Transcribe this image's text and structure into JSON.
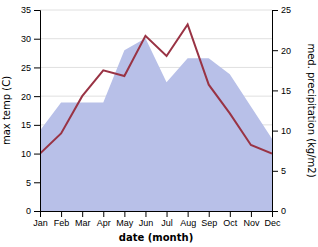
{
  "chart_data": {
    "type": "line",
    "categories": [
      "Jan",
      "Feb",
      "Mar",
      "Apr",
      "May",
      "Jun",
      "Jul",
      "Aug",
      "Sep",
      "Oct",
      "Nov",
      "Dec"
    ],
    "xlabel": "date (month)",
    "ylabel": "max temp (C)",
    "y2label": "med. precipitation (kg/m2)",
    "ylim": [
      0,
      35
    ],
    "yticks": [
      0,
      5,
      10,
      15,
      20,
      25,
      30,
      35
    ],
    "y2lim": [
      0,
      25
    ],
    "y2ticks": [
      0,
      5,
      10,
      15,
      20,
      25
    ],
    "grid": true,
    "series": [
      {
        "type": "area",
        "axis": "y2",
        "color": "#b8c0e8",
        "values": [
          10.0,
          13.5,
          13.5,
          13.5,
          20.0,
          21.5,
          16.0,
          19.0,
          19.0,
          17.0,
          13.0,
          9.0
        ]
      },
      {
        "type": "line",
        "color": "#993344",
        "values": [
          10.0,
          13.5,
          20.0,
          24.5,
          23.5,
          30.5,
          27.0,
          32.5,
          22.0,
          17.0,
          11.5,
          10.0
        ]
      }
    ]
  }
}
